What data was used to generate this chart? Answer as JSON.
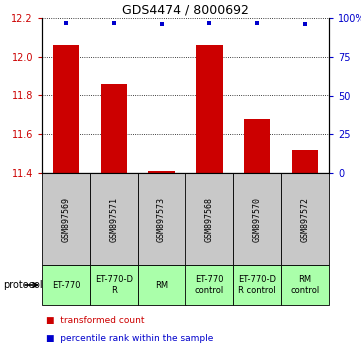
{
  "title": "GDS4474 / 8000692",
  "samples": [
    "GSM897569",
    "GSM897571",
    "GSM897573",
    "GSM897568",
    "GSM897570",
    "GSM897572"
  ],
  "bar_values": [
    12.06,
    11.86,
    11.41,
    12.06,
    11.68,
    11.52
  ],
  "dot_values_pct": [
    97,
    97,
    96,
    97,
    97,
    96
  ],
  "ylim": [
    11.4,
    12.2
  ],
  "ylim_right": [
    0,
    100
  ],
  "yticks_left": [
    11.4,
    11.6,
    11.8,
    12.0,
    12.2
  ],
  "yticks_right": [
    0,
    25,
    50,
    75,
    100
  ],
  "bar_color": "#cc0000",
  "dot_color": "#0000cc",
  "bar_width": 0.55,
  "protocols": [
    "ET-770",
    "ET-770-D\nR",
    "RM",
    "ET-770\ncontrol",
    "ET-770-D\nR control",
    "RM\ncontrol"
  ],
  "protocol_label": "protocol",
  "legend_bar_label": "transformed count",
  "legend_dot_label": "percentile rank within the sample",
  "label_area_color": "#c8c8c8",
  "protocol_bg_color": "#aaffaa",
  "title_fontsize": 9,
  "tick_fontsize": 7,
  "sample_fontsize": 6,
  "proto_fontsize": 6
}
